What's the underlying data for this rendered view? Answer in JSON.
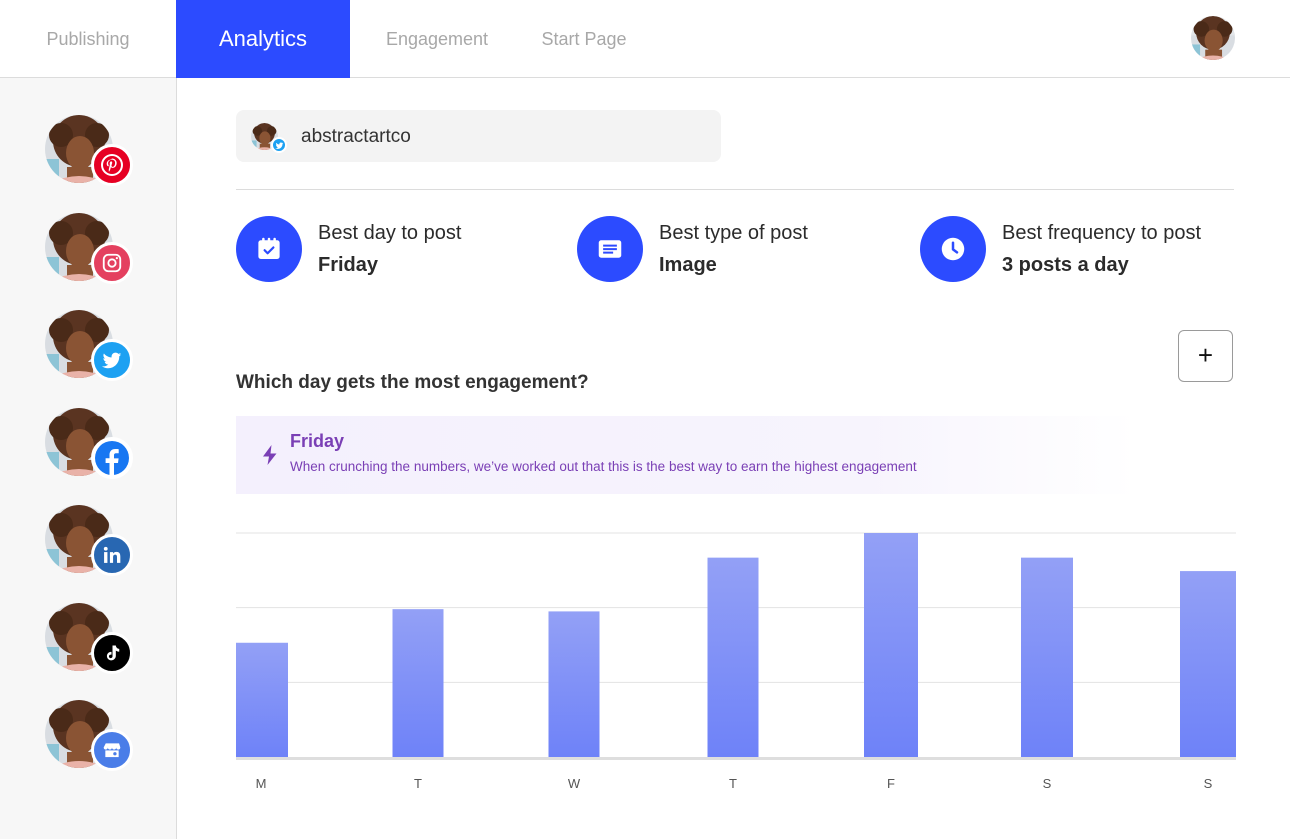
{
  "nav": {
    "tabs": [
      {
        "label": "Publishing",
        "active": false
      },
      {
        "label": "Analytics",
        "active": true
      },
      {
        "label": "Engagement",
        "active": false
      },
      {
        "label": "Start Page",
        "active": false
      }
    ]
  },
  "sidebar": {
    "channels": [
      {
        "network": "pinterest",
        "icon": "pinterest-icon",
        "color": "#e60023"
      },
      {
        "network": "instagram",
        "icon": "instagram-icon",
        "color": "#e4405f"
      },
      {
        "network": "twitter",
        "icon": "twitter-icon",
        "color": "#1da1f2"
      },
      {
        "network": "facebook",
        "icon": "facebook-icon",
        "color": "#1877f2"
      },
      {
        "network": "linkedin",
        "icon": "linkedin-icon",
        "color": "#2867b2"
      },
      {
        "network": "tiktok",
        "icon": "tiktok-icon",
        "color": "#000000"
      },
      {
        "network": "google-business",
        "icon": "storefront-icon",
        "color": "#4a7de8"
      }
    ]
  },
  "account": {
    "name": "abstractartco",
    "network": "twitter"
  },
  "stats": {
    "best_day": {
      "label": "Best day to post",
      "value": "Friday",
      "icon": "calendar-check-icon"
    },
    "best_type": {
      "label": "Best type of post",
      "value": "Image",
      "icon": "post-card-icon"
    },
    "best_frequency": {
      "label": "Best frequency to post",
      "value": "3 posts a day",
      "icon": "clock-icon"
    }
  },
  "section": {
    "title": "Which day gets the most engagement?",
    "add_label": "+"
  },
  "insight": {
    "title": "Friday",
    "description": "When crunching the numbers, we’ve worked out that this is the best way to earn the highest engagement",
    "icon": "lightning-icon"
  },
  "colors": {
    "accent": "#2c4bff",
    "insight_text": "#7a3fb5",
    "bar_top": "#93a0f6",
    "bar_bottom": "#6e82f8"
  },
  "chart_data": {
    "type": "bar",
    "categories": [
      "M",
      "T",
      "W",
      "T",
      "F",
      "S",
      "S"
    ],
    "values": [
      51,
      66,
      65,
      89,
      100,
      89,
      83
    ],
    "ylim": [
      0,
      100
    ],
    "grid": true,
    "legend": "none"
  }
}
